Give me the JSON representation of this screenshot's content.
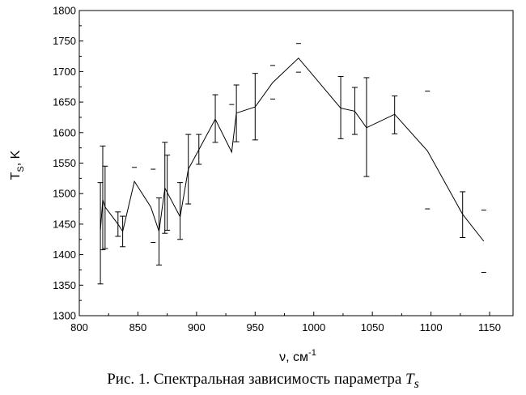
{
  "chart_data": {
    "type": "line",
    "xlabel_base": "ν, см",
    "xlabel_sup": "-1",
    "ylabel_base": "T",
    "ylabel_sub": "S",
    "ylabel_unit": ", K",
    "xlim": [
      800,
      1170
    ],
    "ylim": [
      1300,
      1800
    ],
    "xticks": [
      800,
      850,
      900,
      950,
      1000,
      1050,
      1100,
      1150
    ],
    "yticks": [
      1300,
      1350,
      1400,
      1450,
      1500,
      1550,
      1600,
      1650,
      1700,
      1750,
      1800
    ],
    "series": [
      {
        "points": [
          {
            "x": 818,
            "y": 1440,
            "lo": 1352,
            "hi": 1518
          },
          {
            "x": 820,
            "y": 1490,
            "lo": 1408,
            "hi": 1578
          },
          {
            "x": 822,
            "y": 1478,
            "lo": 1410,
            "hi": 1545
          },
          {
            "x": 833,
            "y": 1450,
            "lo": 1430,
            "hi": 1470
          },
          {
            "x": 837,
            "y": 1438,
            "lo": 1413,
            "hi": 1463
          },
          {
            "x": 847,
            "y": 1520
          },
          {
            "x": 861,
            "y": 1478
          },
          {
            "x": 868,
            "y": 1438,
            "lo": 1383,
            "hi": 1493
          },
          {
            "x": 873,
            "y": 1509,
            "lo": 1435,
            "hi": 1584
          },
          {
            "x": 875,
            "y": 1502,
            "lo": 1440,
            "hi": 1563
          },
          {
            "x": 886,
            "y": 1462,
            "lo": 1425,
            "hi": 1518
          },
          {
            "x": 893,
            "y": 1540,
            "lo": 1483,
            "hi": 1597
          },
          {
            "x": 902,
            "y": 1572,
            "lo": 1548,
            "hi": 1597
          },
          {
            "x": 916,
            "y": 1622,
            "lo": 1584,
            "hi": 1662
          },
          {
            "x": 930,
            "y": 1568
          },
          {
            "x": 934,
            "y": 1632,
            "lo": 1585,
            "hi": 1678
          },
          {
            "x": 950,
            "y": 1642,
            "lo": 1588,
            "hi": 1697
          },
          {
            "x": 965,
            "y": 1682
          },
          {
            "x": 987,
            "y": 1722
          },
          {
            "x": 1023,
            "y": 1640,
            "lo": 1590,
            "hi": 1692
          },
          {
            "x": 1035,
            "y": 1635,
            "lo": 1597,
            "hi": 1674
          },
          {
            "x": 1045,
            "y": 1608,
            "lo": 1528,
            "hi": 1690
          },
          {
            "x": 1069,
            "y": 1630,
            "lo": 1598,
            "hi": 1660
          },
          {
            "x": 1097,
            "y": 1570
          },
          {
            "x": 1127,
            "y": 1466,
            "lo": 1428,
            "hi": 1503
          },
          {
            "x": 1145,
            "y": 1422
          }
        ]
      }
    ],
    "markers": [
      {
        "x": 847,
        "y": 1543
      },
      {
        "x": 863,
        "y": 1540
      },
      {
        "x": 863,
        "y": 1420
      },
      {
        "x": 930,
        "y": 1646
      },
      {
        "x": 965,
        "y": 1710
      },
      {
        "x": 965,
        "y": 1655
      },
      {
        "x": 987,
        "y": 1746
      },
      {
        "x": 987,
        "y": 1699
      },
      {
        "x": 1097,
        "y": 1668
      },
      {
        "x": 1097,
        "y": 1475
      },
      {
        "x": 1145,
        "y": 1473
      },
      {
        "x": 1145,
        "y": 1371
      }
    ]
  },
  "caption": {
    "text": "Рис. 1. Спектральная зависимость параметра ",
    "symbol": "T",
    "symbol_sub": "s"
  }
}
